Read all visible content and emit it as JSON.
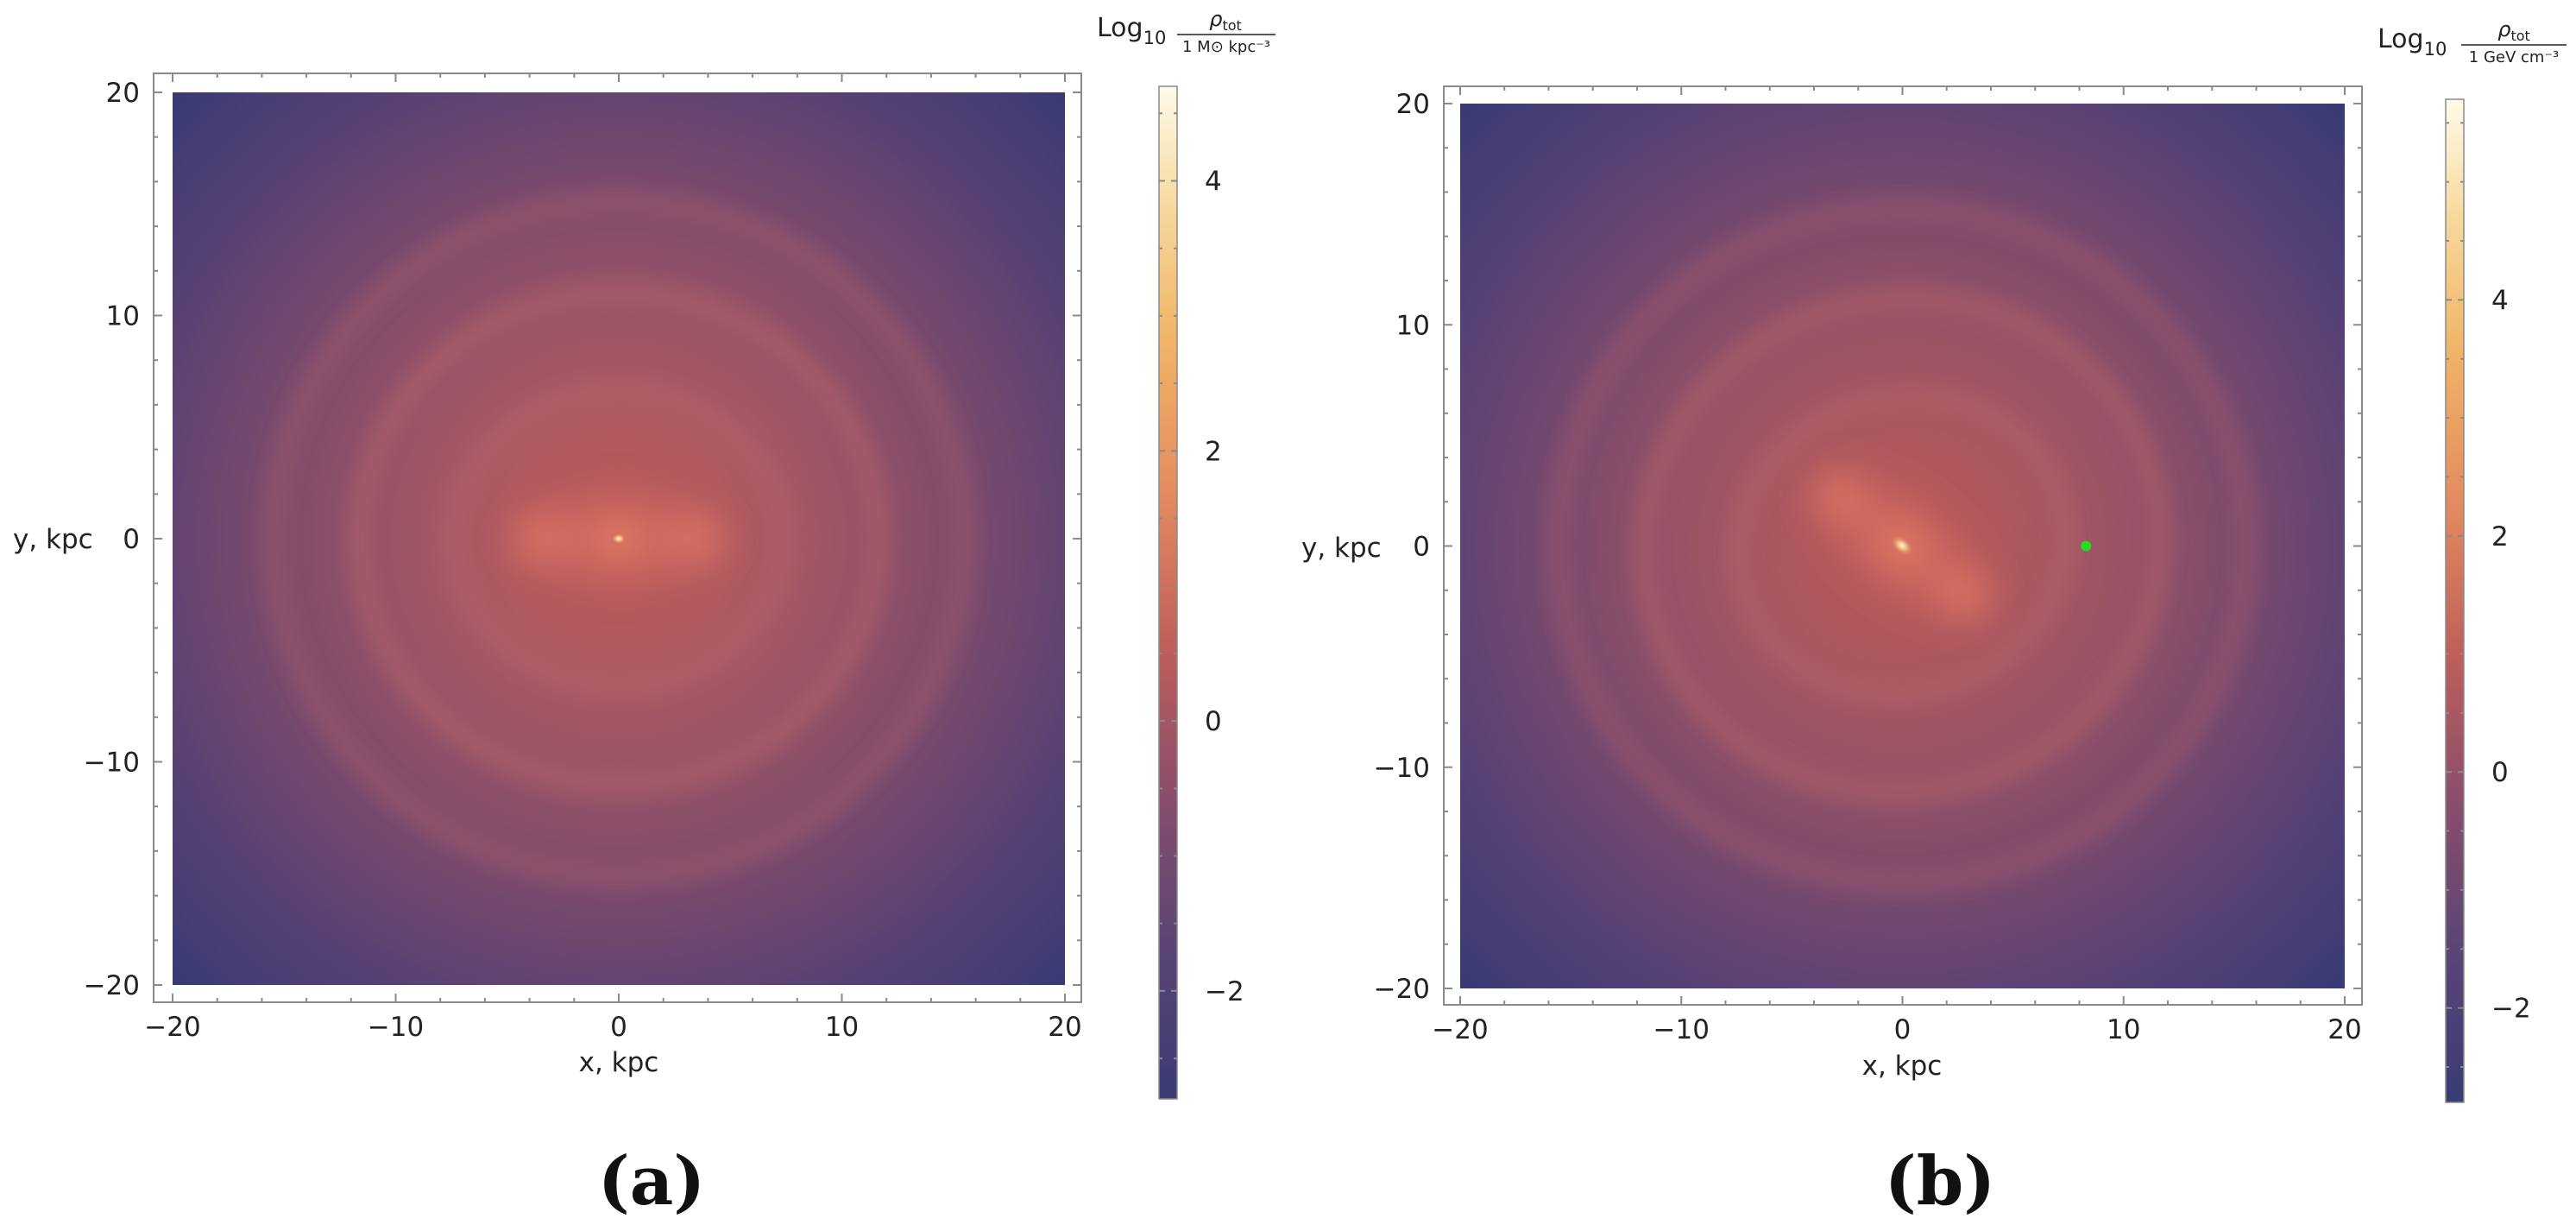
{
  "chart_data": [
    {
      "type": "heatmap",
      "panel_label": "(a)",
      "xlabel": "x, kpc",
      "ylabel": "y, kpc",
      "xlim": [
        -20,
        20
      ],
      "ylim": [
        -20,
        20
      ],
      "x_ticks": [
        "−20",
        "−10",
        "0",
        "10",
        "20"
      ],
      "y_ticks": [
        "20",
        "10",
        "0",
        "−10",
        "−20"
      ],
      "x_tick_values": [
        -20,
        -10,
        0,
        10,
        20
      ],
      "y_tick_values": [
        20,
        10,
        0,
        -10,
        -20
      ],
      "colorbar": {
        "title_prefix": "Log",
        "title_sub": "10",
        "numerator": "ρ",
        "numerator_sub": "tot",
        "denominator": "1 M⊙ kpc⁻³",
        "range": [
          -2.8,
          4.7
        ],
        "ticks": [
          "4",
          "2",
          "0",
          "−2"
        ],
        "tick_values": [
          4,
          2,
          0,
          -2
        ]
      },
      "features": {
        "bar_angle_deg": 0,
        "marker": null
      }
    },
    {
      "type": "heatmap",
      "panel_label": "(b)",
      "xlabel": "x, kpc",
      "ylabel": "y, kpc",
      "xlim": [
        -20,
        20
      ],
      "ylim": [
        -20,
        20
      ],
      "x_ticks": [
        "−20",
        "−10",
        "0",
        "10",
        "20"
      ],
      "y_ticks": [
        "20",
        "10",
        "0",
        "−10",
        "−20"
      ],
      "x_tick_values": [
        -20,
        -10,
        0,
        10,
        20
      ],
      "y_tick_values": [
        20,
        10,
        0,
        -10,
        -20
      ],
      "colorbar": {
        "title_prefix": "Log",
        "title_sub": "10",
        "numerator": "ρ",
        "numerator_sub": "tot",
        "denominator": "1 GeV cm⁻³",
        "range": [
          -2.8,
          5.7
        ],
        "ticks": [
          "4",
          "2",
          "0",
          "−2"
        ],
        "tick_values": [
          4,
          2,
          0,
          -2
        ]
      },
      "features": {
        "bar_angle_deg": -30,
        "marker": {
          "x": 8.3,
          "y": 0,
          "color": "#22dd22"
        }
      }
    }
  ]
}
